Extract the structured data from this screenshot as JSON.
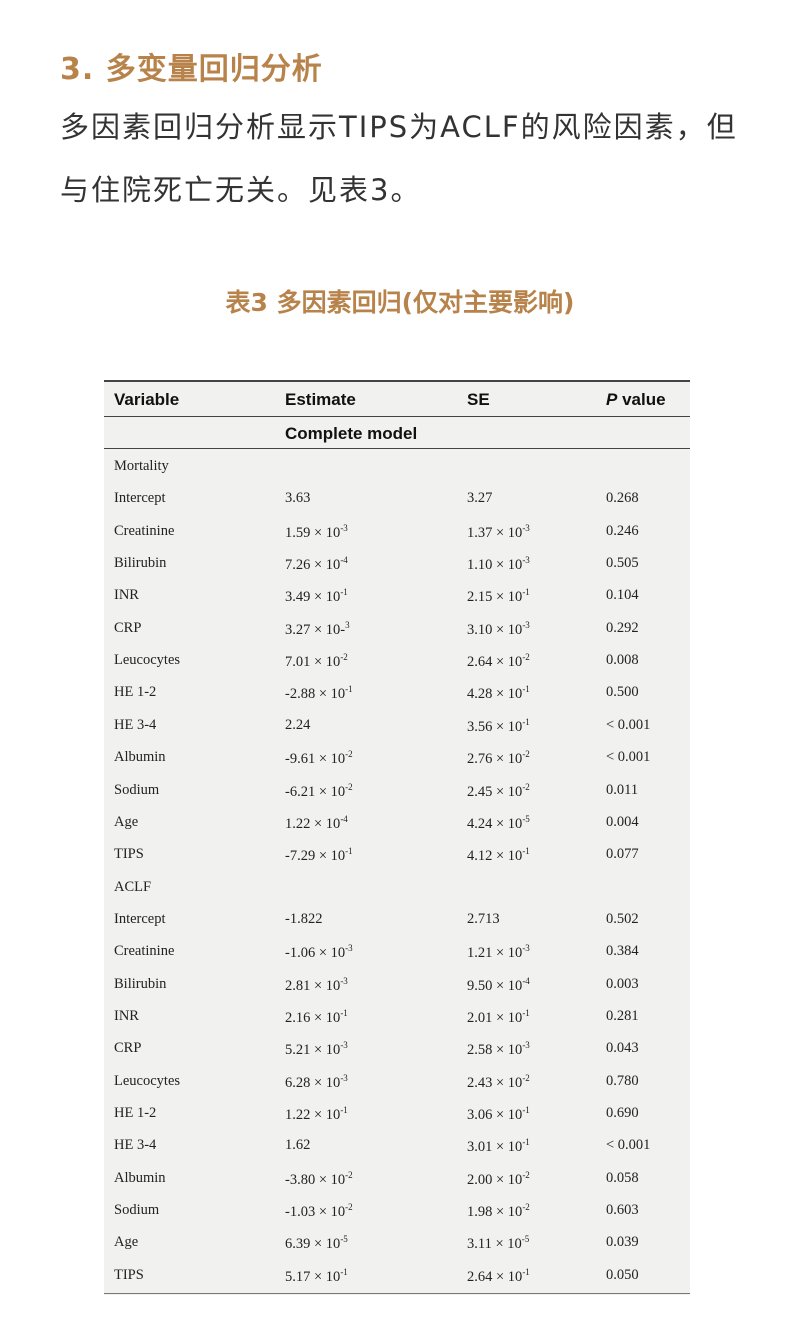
{
  "section_heading": "3. 多变量回归分析",
  "paragraph": "多因素回归分析显示TIPS为ACLF的风险因素，但与住院死亡无关。见表3。",
  "table_caption": "表3 多因素回归(仅对主要影响)",
  "colors": {
    "accent": "#b8834a",
    "text": "#333333",
    "table_bg": "#f1f1f0"
  },
  "table": {
    "headers": {
      "variable": "Variable",
      "estimate": "Estimate",
      "se": "SE",
      "p_italic": "P",
      "p_rest": " value"
    },
    "model_label": "Complete model",
    "rows": [
      {
        "v": "Mortality",
        "est": "",
        "se": "",
        "p": ""
      },
      {
        "v": "Intercept",
        "est": "3.63",
        "se": "3.27",
        "p": "0.268"
      },
      {
        "v": "Creatinine",
        "est": "1.59 × 10^-3",
        "se": "1.37 × 10^-3",
        "p": "0.246"
      },
      {
        "v": "Bilirubin",
        "est": "7.26 × 10^-4",
        "se": "1.10 × 10^-3",
        "p": "0.505"
      },
      {
        "v": "INR",
        "est": "3.49 × 10^-1",
        "se": "2.15 × 10^-1",
        "p": "0.104"
      },
      {
        "v": "CRP",
        "est": "3.27 × 10-^3",
        "se": "3.10 × 10^-3",
        "p": "0.292"
      },
      {
        "v": "Leucocytes",
        "est": "7.01 × 10^-2",
        "se": "2.64 × 10^-2",
        "p": "0.008"
      },
      {
        "v": "HE 1-2",
        "est": "-2.88 × 10^-1",
        "se": "4.28 × 10^-1",
        "p": "0.500"
      },
      {
        "v": "HE 3-4",
        "est": "2.24",
        "se": "3.56 × 10^-1",
        "p": "< 0.001"
      },
      {
        "v": "Albumin",
        "est": "-9.61 × 10^-2",
        "se": "2.76 × 10^-2",
        "p": "< 0.001"
      },
      {
        "v": "Sodium",
        "est": "-6.21 × 10^-2",
        "se": "2.45 × 10^-2",
        "p": "0.011"
      },
      {
        "v": "Age",
        "est": "1.22 × 10^-4",
        "se": "4.24 × 10^-5",
        "p": "0.004"
      },
      {
        "v": "TIPS",
        "est": "-7.29 × 10^-1",
        "se": "4.12 × 10^-1",
        "p": "0.077"
      },
      {
        "v": "ACLF",
        "est": "",
        "se": "",
        "p": ""
      },
      {
        "v": "Intercept",
        "est": "-1.822",
        "se": "2.713",
        "p": "0.502"
      },
      {
        "v": "Creatinine",
        "est": "-1.06 × 10^-3",
        "se": "1.21 × 10^-3",
        "p": "0.384"
      },
      {
        "v": "Bilirubin",
        "est": "2.81 × 10^-3",
        "se": "9.50 × 10^-4",
        "p": "0.003"
      },
      {
        "v": "INR",
        "est": "2.16 × 10^-1",
        "se": "2.01 × 10^-1",
        "p": "0.281"
      },
      {
        "v": "CRP",
        "est": "5.21 × 10^-3",
        "se": "2.58 × 10^-3",
        "p": "0.043"
      },
      {
        "v": "Leucocytes",
        "est": "6.28 × 10^-3",
        "se": "2.43 × 10^-2",
        "p": "0.780"
      },
      {
        "v": "HE 1-2",
        "est": "1.22 × 10^-1",
        "se": "3.06 × 10^-1",
        "p": "0.690"
      },
      {
        "v": "HE 3-4",
        "est": "1.62",
        "se": "3.01 × 10^-1",
        "p": "< 0.001"
      },
      {
        "v": "Albumin",
        "est": "-3.80 × 10^-2",
        "se": "2.00 × 10^-2",
        "p": "0.058"
      },
      {
        "v": "Sodium",
        "est": "-1.03 × 10^-2",
        "se": "1.98 × 10^-2",
        "p": "0.603"
      },
      {
        "v": "Age",
        "est": "6.39 × 10^-5",
        "se": "3.11 × 10^-5",
        "p": "0.039"
      },
      {
        "v": "TIPS",
        "est": "5.17 × 10^-1",
        "se": "2.64 × 10^-1",
        "p": "0.050"
      }
    ]
  }
}
